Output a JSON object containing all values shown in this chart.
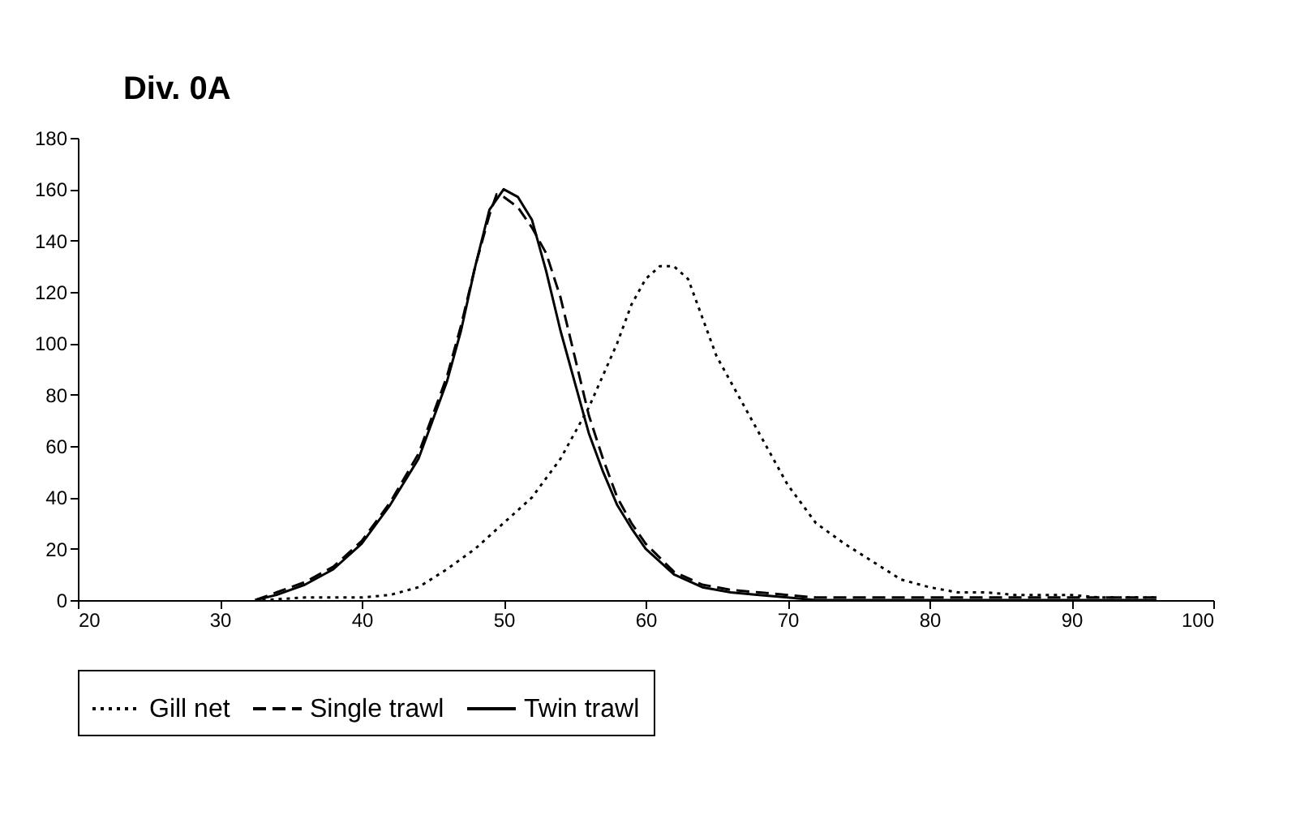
{
  "chart_data": {
    "type": "line",
    "title": "Div. 0A",
    "xlim": [
      20,
      100
    ],
    "xticks": [
      20,
      30,
      40,
      50,
      60,
      70,
      80,
      90,
      100
    ],
    "ylim": [
      0,
      180
    ],
    "yticks": [
      0,
      20,
      40,
      60,
      80,
      100,
      120,
      140,
      160,
      180
    ],
    "grid": false,
    "legend": "bottom",
    "marker": "none",
    "series": [
      {
        "name": "Gill net",
        "color": "#000000",
        "line_style": "dotted",
        "x": [
          33,
          36,
          40,
          42,
          44,
          46,
          48,
          50,
          52,
          54,
          56,
          58,
          59,
          60,
          61,
          62,
          63,
          64,
          65,
          66,
          67,
          68,
          70,
          72,
          74,
          76,
          78,
          80,
          82,
          84,
          86,
          88,
          90,
          92,
          94,
          96
        ],
        "values": [
          0,
          1,
          1,
          2,
          5,
          12,
          20,
          30,
          40,
          55,
          75,
          100,
          115,
          125,
          130,
          130,
          125,
          110,
          95,
          85,
          75,
          65,
          45,
          30,
          22,
          15,
          8,
          5,
          3,
          3,
          2,
          2,
          2,
          1,
          1,
          1
        ]
      },
      {
        "name": "Single trawl",
        "color": "#000000",
        "line_style": "dashed",
        "x": [
          32.5,
          34,
          36,
          38,
          40,
          42,
          44,
          46,
          47,
          48,
          49,
          49.5,
          50,
          51,
          52,
          53,
          54,
          55,
          56,
          57,
          58,
          59,
          60,
          62,
          64,
          66,
          68,
          70,
          72,
          80,
          90,
          96
        ],
        "values": [
          0,
          3,
          7,
          13,
          23,
          38,
          57,
          87,
          107,
          130,
          150,
          158,
          157,
          153,
          145,
          135,
          118,
          95,
          72,
          55,
          40,
          30,
          22,
          11,
          6,
          4,
          3,
          2,
          1,
          1,
          1,
          1
        ]
      },
      {
        "name": "Twin trawl",
        "color": "#000000",
        "line_style": "solid",
        "x": [
          32.5,
          34,
          36,
          38,
          40,
          42,
          44,
          46,
          47,
          48,
          49,
          50,
          51,
          52,
          53,
          54,
          55,
          56,
          57,
          58,
          59,
          60,
          62,
          64,
          66,
          68,
          70,
          72,
          80,
          90,
          96
        ],
        "values": [
          0,
          2,
          6,
          12,
          22,
          37,
          55,
          85,
          105,
          130,
          152,
          160,
          157,
          148,
          128,
          105,
          85,
          65,
          50,
          37,
          28,
          20,
          10,
          5,
          3,
          2,
          1,
          0,
          0,
          0,
          0
        ]
      }
    ]
  }
}
